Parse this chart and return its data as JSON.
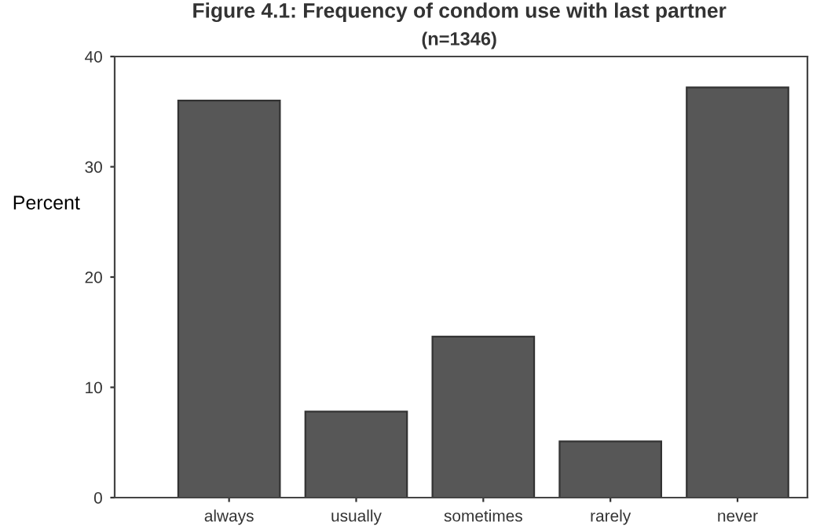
{
  "chart_data": {
    "type": "bar",
    "title": "Figure 4.1: Frequency of condom use with last partner",
    "subtitle": "(n=1346)",
    "ylabel": "Percent",
    "categories": [
      "always",
      "usually",
      "sometimes",
      "rarely",
      "never"
    ],
    "values": [
      36.0,
      7.8,
      14.6,
      5.1,
      37.2
    ],
    "color": "#575757",
    "ylim": [
      0,
      40
    ],
    "yticks": [
      0,
      10,
      20,
      30,
      40
    ],
    "grid": false,
    "legend": false
  }
}
